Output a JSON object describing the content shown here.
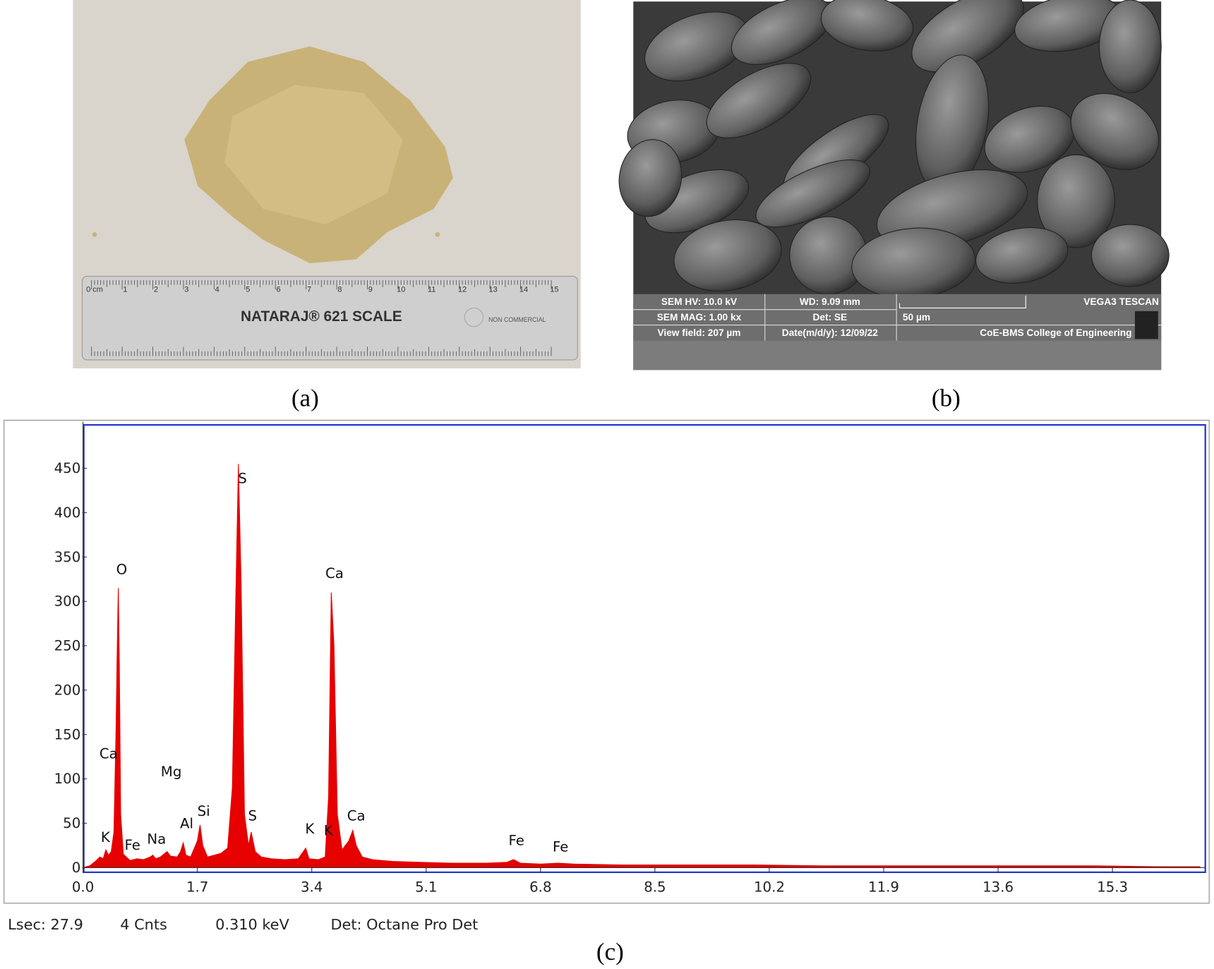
{
  "panel_a": {
    "caption": "(a)",
    "ruler": {
      "brand": "NATARAJ® 621 SCALE",
      "note": "NON COMMERCIAL",
      "marks": [
        "0 cm",
        "1",
        "2",
        "3",
        "4",
        "5",
        "6",
        "7",
        "8",
        "9",
        "10",
        "11",
        "12",
        "13",
        "14",
        "15"
      ]
    }
  },
  "panel_b": {
    "caption": "(b)",
    "info": [
      [
        "SEM HV: 10.0 kV",
        "WD: 9.09 mm",
        "VEGA3 TESCAN"
      ],
      [
        "SEM MAG: 1.00 kx",
        "Det: SE",
        "50 µm"
      ],
      [
        "View field: 207 µm",
        "Date(m/d/y): 12/09/22",
        "CoE-BMS College of Engineering"
      ]
    ]
  },
  "panel_c": {
    "caption": "(c)",
    "status": [
      "Lsec: 27.9",
      "4 Cnts",
      "0.310 keV",
      "Det: Octane Pro Det"
    ]
  },
  "chart_data": {
    "type": "area",
    "color": "#e60000",
    "x": [
      0.0,
      0.1,
      0.2,
      0.25,
      0.3,
      0.34,
      0.38,
      0.42,
      0.46,
      0.49,
      0.51,
      0.525,
      0.54,
      0.56,
      0.6,
      0.7,
      0.8,
      0.9,
      1.0,
      1.04,
      1.08,
      1.15,
      1.25,
      1.3,
      1.4,
      1.45,
      1.49,
      1.53,
      1.6,
      1.7,
      1.74,
      1.78,
      1.85,
      1.95,
      2.05,
      2.15,
      2.22,
      2.27,
      2.31,
      2.35,
      2.4,
      2.46,
      2.5,
      2.56,
      2.65,
      2.8,
      3.0,
      3.2,
      3.31,
      3.36,
      3.5,
      3.6,
      3.65,
      3.69,
      3.73,
      3.78,
      3.85,
      3.95,
      4.01,
      4.06,
      4.15,
      4.3,
      4.6,
      5.0,
      5.5,
      6.0,
      6.3,
      6.4,
      6.5,
      6.8,
      7.06,
      7.3,
      8.0,
      9.0,
      10.0,
      11.0,
      12.0,
      13.0,
      14.0,
      15.0,
      16.0,
      16.6
    ],
    "values": [
      0,
      2,
      8,
      12,
      10,
      20,
      14,
      18,
      40,
      150,
      250,
      315,
      230,
      60,
      15,
      8,
      10,
      9,
      12,
      14,
      10,
      12,
      18,
      13,
      12,
      18,
      28,
      14,
      12,
      30,
      48,
      25,
      12,
      14,
      16,
      22,
      90,
      300,
      455,
      320,
      60,
      25,
      40,
      18,
      12,
      10,
      9,
      10,
      22,
      10,
      9,
      12,
      80,
      310,
      250,
      60,
      20,
      30,
      42,
      25,
      12,
      9,
      7,
      6,
      5,
      5,
      6,
      9,
      5,
      4,
      5,
      4,
      3,
      3,
      3,
      2,
      2,
      2,
      2,
      2,
      1,
      1
    ],
    "xlim": [
      0,
      16.68
    ],
    "ylim": [
      0,
      498
    ],
    "xticks": [
      {
        "value": 0,
        "label": "0.0"
      },
      1.7,
      3.4,
      5.1,
      6.8,
      8.5,
      10.2,
      11.9,
      13.6,
      15.3
    ],
    "yticks": [
      0,
      50,
      100,
      150,
      200,
      250,
      300,
      350,
      400,
      450
    ],
    "annotations": [
      "O",
      "Ca",
      "S",
      "Ca",
      "Mg",
      "Si",
      "Al",
      "Na",
      "Fe",
      "K",
      "S",
      "K",
      "K",
      "Ca",
      "Fe",
      "Fe"
    ]
  }
}
